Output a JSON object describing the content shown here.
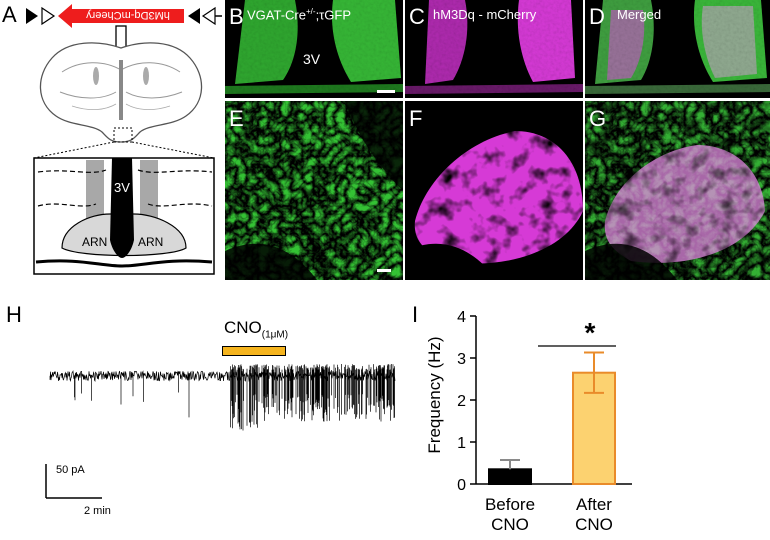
{
  "panel_labels": {
    "a": "A",
    "b": "B",
    "c": "C",
    "d": "D",
    "e": "E",
    "f": "F",
    "g": "G",
    "h": "H",
    "i": "I"
  },
  "panel_a": {
    "construct": "hM3Dq-mCheery",
    "ventricle": "3V",
    "arn_left": "ARN",
    "arn_right": "ARN"
  },
  "micrographs": {
    "b_title_pre": "VGAT-Cre",
    "b_title_sup": "+/-",
    "b_title_post": ";τGFP",
    "c_title": "hM3Dq - mCherry",
    "d_title": "Merged",
    "ventricle": "3V",
    "colors": {
      "gfp": "#3ed43e",
      "mcherry": "#e23be2",
      "merged": "#f4d6f4"
    }
  },
  "panel_h": {
    "stim_pre": "CNO",
    "stim_sub": "(1μM)",
    "scale_y": "50 pA",
    "scale_x": "2 min",
    "bar_color": "#f5b41e"
  },
  "chart_data": {
    "type": "bar",
    "categories": [
      "Before CNO",
      "After CNO"
    ],
    "category_lines": [
      [
        "Before",
        "CNO"
      ],
      [
        "After",
        "CNO"
      ]
    ],
    "values": [
      0.35,
      2.65
    ],
    "errors": [
      0.22,
      0.48
    ],
    "ylabel": "Frequency (Hz)",
    "ylim": [
      0,
      4
    ],
    "yticks": [
      0,
      1,
      2,
      3,
      4
    ],
    "significance": "*",
    "colors": {
      "before": "#000000",
      "after_fill": "#fcd270",
      "after_edge": "#e98b2a"
    }
  }
}
